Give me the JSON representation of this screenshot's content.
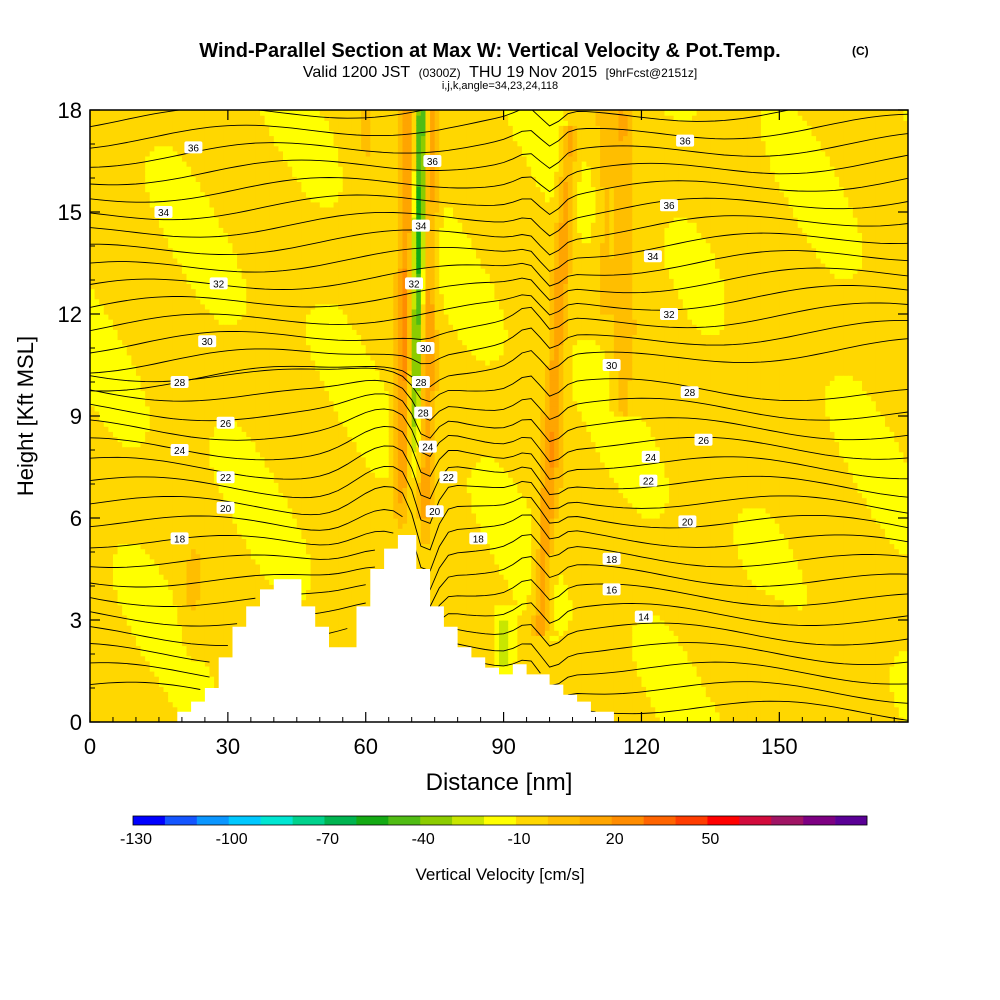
{
  "header": {
    "title": "Wind-Parallel Section at Max W: Vertical Velocity & Pot.Temp.",
    "copyright": "(C)",
    "valid_main_1": "Valid 1200 JST",
    "valid_small_1": "(0300Z)",
    "valid_main_2": "THU 19 Nov 2015",
    "valid_small_2": "[9hrFcst@2151z]",
    "params": "i,j,k,angle=34,23,24,118"
  },
  "colorbar": {
    "label": "Vertical Velocity [cm/s]",
    "tick_labels": [
      "-130",
      "-100",
      "-70",
      "-40",
      "-10",
      "20",
      "50"
    ],
    "tick_values": [
      -130,
      -100,
      -70,
      -40,
      -10,
      20,
      50
    ],
    "range": [
      -130,
      65
    ],
    "bin_size": 10,
    "colors": [
      "#0000ff",
      "#1455ff",
      "#0a96ff",
      "#00c8ff",
      "#00e6d2",
      "#00d28c",
      "#00b450",
      "#14aa14",
      "#50bc14",
      "#8ccc00",
      "#c8e600",
      "#ffff00",
      "#ffd700",
      "#ffbe00",
      "#ffa500",
      "#ff8c00",
      "#ff6400",
      "#ff3c00",
      "#ff0000",
      "#d20a3c",
      "#a01464",
      "#7d0082",
      "#5a0096"
    ]
  },
  "chart_data": {
    "type": "heatmap",
    "xlabel": "Distance [nm]",
    "ylabel": "Height [Kft MSL]",
    "xlim": [
      0,
      178
    ],
    "ylim": [
      0,
      18
    ],
    "x_ticks": [
      0,
      30,
      60,
      90,
      120,
      150
    ],
    "y_ticks": [
      0,
      3,
      6,
      9,
      12,
      15,
      18
    ],
    "field": "vertical velocity (cm/s)",
    "updraft_bands": [
      {
        "x_center": 70,
        "from_height": 5.5,
        "to_height": 18,
        "w_max": 30
      },
      {
        "x_center": 98,
        "from_height": 2.5,
        "to_height": 17,
        "w_max": 25
      },
      {
        "x_center": 115,
        "from_height": 9,
        "to_height": 17,
        "w_max": 10
      }
    ],
    "downdraft_band": {
      "x_center": 72,
      "from_height": 7,
      "to_height": 18,
      "w_min": -40
    },
    "terrain_profile": [
      [
        19,
        0
      ],
      [
        19,
        0.3
      ],
      [
        22,
        0.3
      ],
      [
        22,
        0.6
      ],
      [
        25,
        0.6
      ],
      [
        25,
        1
      ],
      [
        28,
        1
      ],
      [
        28,
        1.9
      ],
      [
        31,
        1.9
      ],
      [
        31,
        2.8
      ],
      [
        34,
        2.8
      ],
      [
        34,
        3.4
      ],
      [
        37,
        3.4
      ],
      [
        37,
        3.9
      ],
      [
        40,
        3.9
      ],
      [
        40,
        4.2
      ],
      [
        46,
        4.2
      ],
      [
        46,
        3.4
      ],
      [
        49,
        3.4
      ],
      [
        49,
        2.8
      ],
      [
        52,
        2.8
      ],
      [
        52,
        2.2
      ],
      [
        58,
        2.2
      ],
      [
        58,
        3.4
      ],
      [
        61,
        3.4
      ],
      [
        61,
        4.5
      ],
      [
        64,
        4.5
      ],
      [
        64,
        5.1
      ],
      [
        67,
        5.1
      ],
      [
        67,
        5.5
      ],
      [
        71,
        5.5
      ],
      [
        71,
        4.5
      ],
      [
        74,
        4.5
      ],
      [
        74,
        3.4
      ],
      [
        77,
        3.4
      ],
      [
        77,
        2.8
      ],
      [
        80,
        2.8
      ],
      [
        80,
        2.2
      ],
      [
        83,
        2.2
      ],
      [
        83,
        1.9
      ],
      [
        86,
        1.9
      ],
      [
        86,
        1.6
      ],
      [
        89,
        1.6
      ],
      [
        89,
        1.4
      ],
      [
        92,
        1.4
      ],
      [
        92,
        1.7
      ],
      [
        95,
        1.7
      ],
      [
        95,
        1.4
      ],
      [
        100,
        1.4
      ],
      [
        100,
        1.1
      ],
      [
        103,
        1.1
      ],
      [
        103,
        0.8
      ],
      [
        106,
        0.8
      ],
      [
        106,
        0.6
      ],
      [
        109,
        0.6
      ],
      [
        109,
        0.3
      ],
      [
        114,
        0.3
      ],
      [
        114,
        0
      ]
    ],
    "contour_series": [
      {
        "name": "14",
        "label_x": 120.5,
        "label_y": 3.1
      },
      {
        "name": "16",
        "label_x": 113.5,
        "label_y": 3.9
      },
      {
        "name": "18",
        "label_x": 19.5,
        "label_y": 5.4
      },
      {
        "name": "18",
        "label_x": 84.5,
        "label_y": 5.4
      },
      {
        "name": "18",
        "label_x": 113.5,
        "label_y": 4.8
      },
      {
        "name": "20",
        "label_x": 29.5,
        "label_y": 6.3
      },
      {
        "name": "20",
        "label_x": 75.0,
        "label_y": 6.2
      },
      {
        "name": "20",
        "label_x": 130.0,
        "label_y": 5.9
      },
      {
        "name": "22",
        "label_x": 29.5,
        "label_y": 7.2
      },
      {
        "name": "22",
        "label_x": 78.0,
        "label_y": 7.2
      },
      {
        "name": "22",
        "label_x": 121.5,
        "label_y": 7.1
      },
      {
        "name": "24",
        "label_x": 19.5,
        "label_y": 8.0
      },
      {
        "name": "24",
        "label_x": 73.5,
        "label_y": 8.1
      },
      {
        "name": "24",
        "label_x": 122.0,
        "label_y": 7.8
      },
      {
        "name": "26",
        "label_x": 29.5,
        "label_y": 8.8
      },
      {
        "name": "26",
        "label_x": 133.5,
        "label_y": 8.3
      },
      {
        "name": "28",
        "label_x": 72.5,
        "label_y": 9.1
      },
      {
        "name": "28",
        "label_x": 19.5,
        "label_y": 10.0
      },
      {
        "name": "28",
        "label_x": 130.5,
        "label_y": 9.7
      },
      {
        "name": "28",
        "label_x": 72.0,
        "label_y": 10.0
      },
      {
        "name": "30",
        "label_x": 25.5,
        "label_y": 11.2
      },
      {
        "name": "30",
        "label_x": 73.0,
        "label_y": 11.0
      },
      {
        "name": "30",
        "label_x": 113.5,
        "label_y": 10.5
      },
      {
        "name": "32",
        "label_x": 28.0,
        "label_y": 12.9
      },
      {
        "name": "32",
        "label_x": 70.5,
        "label_y": 12.9
      },
      {
        "name": "32",
        "label_x": 126.0,
        "label_y": 12.0
      },
      {
        "name": "34",
        "label_x": 16.0,
        "label_y": 15.0
      },
      {
        "name": "34",
        "label_x": 72.0,
        "label_y": 14.6
      },
      {
        "name": "34",
        "label_x": 122.5,
        "label_y": 13.7
      },
      {
        "name": "36",
        "label_x": 22.5,
        "label_y": 16.9
      },
      {
        "name": "36",
        "label_x": 74.5,
        "label_y": 16.5
      },
      {
        "name": "36",
        "label_x": 126.0,
        "label_y": 15.2
      },
      {
        "name": "36",
        "label_x": 129.5,
        "label_y": 17.1
      }
    ]
  }
}
